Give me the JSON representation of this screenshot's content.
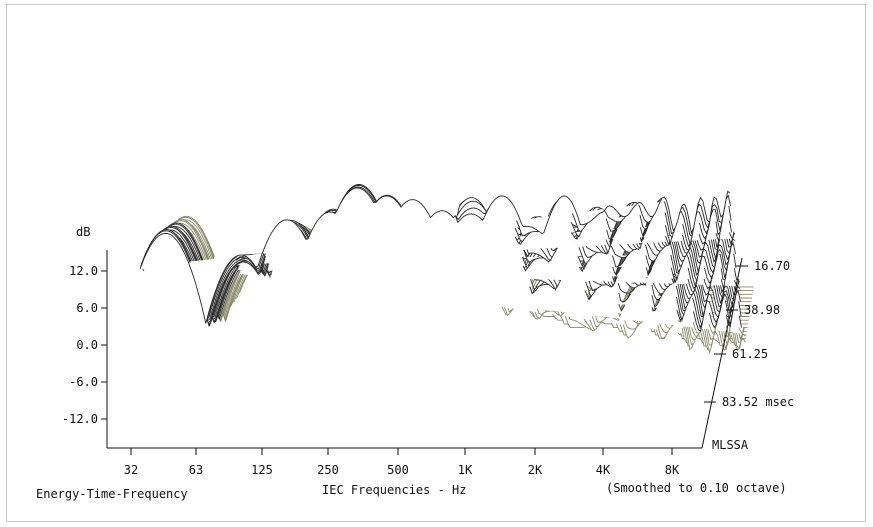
{
  "chart_data": {
    "type": "waterfall",
    "ylabel": "dB",
    "ytick_labels": [
      "12.0",
      "6.0",
      "0.0",
      "-6.0",
      "-12.0"
    ],
    "ytick_values": [
      12,
      6,
      0,
      -6,
      -12
    ],
    "xtick_labels": [
      "32",
      "63",
      "125",
      "250",
      "500",
      "1K",
      "2K",
      "4K",
      "8K"
    ],
    "x_values_hz": [
      32,
      63,
      125,
      250,
      500,
      1000,
      2000,
      4000,
      8000
    ],
    "time_axis_labels": [
      "16.70",
      "38.98",
      "61.25",
      "83.52 msec"
    ],
    "time_values_msec": [
      16.7,
      38.98,
      61.25,
      83.52
    ],
    "analyzer_label": "MLSSA",
    "footer_left": "Energy-Time-Frequency",
    "xlabel": "IEC Frequencies - Hz",
    "footer_right": "(Smoothed to 0.10 octave)",
    "slice_count": 44,
    "colors": {
      "early_slices": "#8a8a6a",
      "late_slices": "#2a2a2a",
      "background": "#ffffff"
    }
  }
}
